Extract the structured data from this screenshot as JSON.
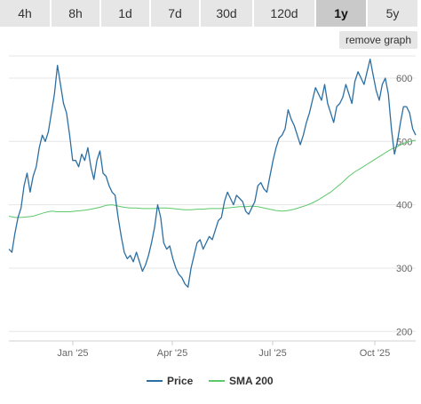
{
  "range_buttons": [
    {
      "label": "4h",
      "active": false
    },
    {
      "label": "8h",
      "active": false
    },
    {
      "label": "1d",
      "active": false
    },
    {
      "label": "7d",
      "active": false
    },
    {
      "label": "30d",
      "active": false
    },
    {
      "label": "120d",
      "active": false
    },
    {
      "label": "1y",
      "active": true
    },
    {
      "label": "5y",
      "active": false
    }
  ],
  "remove_graph_label": "remove graph",
  "chart_data": {
    "type": "line",
    "x_ticks": [
      "Jan '25",
      "Apr '25",
      "Jul '25",
      "Oct '25"
    ],
    "y_ticks": [
      200,
      300,
      400,
      500,
      600
    ],
    "ylim": [
      185,
      635
    ],
    "grid": true,
    "legend_position": "bottom-center",
    "series": [
      {
        "name": "Price",
        "color": "#2c6fa3",
        "values": [
          [
            0,
            330
          ],
          [
            0.5,
            325
          ],
          [
            1,
            355
          ],
          [
            1.5,
            380
          ],
          [
            2,
            395
          ],
          [
            2.5,
            430
          ],
          [
            3,
            450
          ],
          [
            3.5,
            420
          ],
          [
            4,
            445
          ],
          [
            4.5,
            460
          ],
          [
            5,
            490
          ],
          [
            5.5,
            510
          ],
          [
            6,
            500
          ],
          [
            6.5,
            515
          ],
          [
            7,
            545
          ],
          [
            7.5,
            575
          ],
          [
            8,
            620
          ],
          [
            8.5,
            590
          ],
          [
            9,
            560
          ],
          [
            9.5,
            545
          ],
          [
            10,
            510
          ],
          [
            10.5,
            470
          ],
          [
            11,
            470
          ],
          [
            11.5,
            460
          ],
          [
            12,
            480
          ],
          [
            12.5,
            470
          ],
          [
            13,
            490
          ],
          [
            13.5,
            460
          ],
          [
            14,
            440
          ],
          [
            14.5,
            470
          ],
          [
            15,
            485
          ],
          [
            15.5,
            450
          ],
          [
            16,
            445
          ],
          [
            16.5,
            430
          ],
          [
            17,
            420
          ],
          [
            17.5,
            415
          ],
          [
            18,
            380
          ],
          [
            18.5,
            350
          ],
          [
            19,
            325
          ],
          [
            19.5,
            315
          ],
          [
            20,
            320
          ],
          [
            20.5,
            310
          ],
          [
            21,
            325
          ],
          [
            21.5,
            310
          ],
          [
            22,
            295
          ],
          [
            22.5,
            305
          ],
          [
            23,
            320
          ],
          [
            23.5,
            340
          ],
          [
            24,
            365
          ],
          [
            24.5,
            400
          ],
          [
            25,
            380
          ],
          [
            25.5,
            340
          ],
          [
            26,
            330
          ],
          [
            26.5,
            335
          ],
          [
            27,
            315
          ],
          [
            27.5,
            300
          ],
          [
            28,
            290
          ],
          [
            28.5,
            285
          ],
          [
            29,
            275
          ],
          [
            29.5,
            270
          ],
          [
            30,
            300
          ],
          [
            30.5,
            320
          ],
          [
            31,
            340
          ],
          [
            31.5,
            345
          ],
          [
            32,
            330
          ],
          [
            32.5,
            340
          ],
          [
            33,
            350
          ],
          [
            33.5,
            345
          ],
          [
            34,
            360
          ],
          [
            34.5,
            375
          ],
          [
            35,
            380
          ],
          [
            35.5,
            405
          ],
          [
            36,
            420
          ],
          [
            36.5,
            410
          ],
          [
            37,
            400
          ],
          [
            37.5,
            415
          ],
          [
            38,
            410
          ],
          [
            38.5,
            405
          ],
          [
            39,
            390
          ],
          [
            39.5,
            385
          ],
          [
            40,
            395
          ],
          [
            40.5,
            405
          ],
          [
            41,
            430
          ],
          [
            41.5,
            435
          ],
          [
            42,
            425
          ],
          [
            42.5,
            420
          ],
          [
            43,
            445
          ],
          [
            43.5,
            470
          ],
          [
            44,
            490
          ],
          [
            44.5,
            505
          ],
          [
            45,
            510
          ],
          [
            45.5,
            520
          ],
          [
            46,
            550
          ],
          [
            46.5,
            535
          ],
          [
            47,
            525
          ],
          [
            47.5,
            510
          ],
          [
            48,
            495
          ],
          [
            48.5,
            510
          ],
          [
            49,
            530
          ],
          [
            49.5,
            545
          ],
          [
            50,
            565
          ],
          [
            50.5,
            585
          ],
          [
            51,
            575
          ],
          [
            51.5,
            565
          ],
          [
            52,
            590
          ],
          [
            52.5,
            560
          ],
          [
            53,
            545
          ],
          [
            53.5,
            530
          ],
          [
            54,
            555
          ],
          [
            54.5,
            560
          ],
          [
            55,
            570
          ],
          [
            55.5,
            590
          ],
          [
            56,
            575
          ],
          [
            56.5,
            560
          ],
          [
            57,
            595
          ],
          [
            57.5,
            610
          ],
          [
            58,
            600
          ],
          [
            58.5,
            590
          ],
          [
            59,
            610
          ],
          [
            59.5,
            630
          ],
          [
            60,
            605
          ],
          [
            60.5,
            580
          ],
          [
            61,
            565
          ],
          [
            61.5,
            590
          ],
          [
            62,
            600
          ],
          [
            62.5,
            575
          ],
          [
            63,
            520
          ],
          [
            63.5,
            480
          ],
          [
            64,
            500
          ],
          [
            64.5,
            530
          ],
          [
            65,
            555
          ],
          [
            65.5,
            555
          ],
          [
            66,
            545
          ],
          [
            66.5,
            520
          ],
          [
            67,
            510
          ]
        ]
      },
      {
        "name": "SMA 200",
        "color": "#5cc86a",
        "values": [
          [
            0,
            382
          ],
          [
            1,
            380
          ],
          [
            2,
            380
          ],
          [
            3,
            381
          ],
          [
            4,
            382
          ],
          [
            5,
            385
          ],
          [
            6,
            388
          ],
          [
            7,
            390
          ],
          [
            8,
            389
          ],
          [
            9,
            389
          ],
          [
            10,
            389
          ],
          [
            11,
            390
          ],
          [
            12,
            391
          ],
          [
            13,
            392
          ],
          [
            14,
            394
          ],
          [
            15,
            396
          ],
          [
            16,
            399
          ],
          [
            17,
            400
          ],
          [
            18,
            398
          ],
          [
            19,
            396
          ],
          [
            20,
            395
          ],
          [
            21,
            395
          ],
          [
            22,
            394
          ],
          [
            23,
            394
          ],
          [
            24,
            394
          ],
          [
            25,
            395
          ],
          [
            26,
            395
          ],
          [
            27,
            394
          ],
          [
            28,
            393
          ],
          [
            29,
            392
          ],
          [
            30,
            392
          ],
          [
            31,
            393
          ],
          [
            32,
            393
          ],
          [
            33,
            394
          ],
          [
            34,
            394
          ],
          [
            35,
            394
          ],
          [
            36,
            395
          ],
          [
            37,
            396
          ],
          [
            38,
            397
          ],
          [
            39,
            397
          ],
          [
            40,
            398
          ],
          [
            41,
            397
          ],
          [
            42,
            395
          ],
          [
            43,
            393
          ],
          [
            44,
            391
          ],
          [
            45,
            390
          ],
          [
            46,
            391
          ],
          [
            47,
            393
          ],
          [
            48,
            396
          ],
          [
            49,
            399
          ],
          [
            50,
            403
          ],
          [
            51,
            408
          ],
          [
            52,
            414
          ],
          [
            53,
            420
          ],
          [
            54,
            428
          ],
          [
            55,
            436
          ],
          [
            56,
            445
          ],
          [
            57,
            452
          ],
          [
            58,
            458
          ],
          [
            59,
            464
          ],
          [
            60,
            470
          ],
          [
            61,
            476
          ],
          [
            62,
            482
          ],
          [
            63,
            488
          ],
          [
            64,
            492
          ],
          [
            65,
            497
          ],
          [
            66,
            500
          ],
          [
            67,
            502
          ]
        ]
      }
    ]
  }
}
